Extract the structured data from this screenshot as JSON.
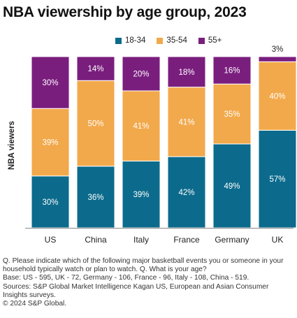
{
  "title": "NBA viewership by age group, 2023",
  "colors": {
    "18-34": "#0c6b8c",
    "35-54": "#f2a94b",
    "55+": "#7a1e7e"
  },
  "chart_data": {
    "type": "bar",
    "stacked": true,
    "categories": [
      "US",
      "China",
      "Italy",
      "France",
      "Germany",
      "UK"
    ],
    "series": [
      {
        "name": "18-34",
        "values": [
          30,
          36,
          39,
          42,
          49,
          57
        ]
      },
      {
        "name": "35-54",
        "values": [
          39,
          50,
          41,
          41,
          35,
          40
        ]
      },
      {
        "name": "55+",
        "values": [
          30,
          14,
          20,
          18,
          16,
          3
        ]
      }
    ],
    "labels": [
      [
        "30%",
        "36%",
        "39%",
        "42%",
        "49%",
        "57%"
      ],
      [
        "39%",
        "50%",
        "41%",
        "41%",
        "35%",
        "40%"
      ],
      [
        "30%",
        "14%",
        "20%",
        "18%",
        "16%",
        "3%"
      ]
    ],
    "ylabel": "NBA viewers",
    "ylim": [
      0,
      100
    ],
    "legend": "top",
    "grid": false
  },
  "footnote": {
    "line1": "Q. Please indicate which of the following major basketball events you or someone in your household typically watch or plan to watch. Q. What is your age?",
    "line2": "Base: US - 595, UK - 72, Germany - 106, France - 96, Italy - 108, China - 519.",
    "line3": "Sources: S&P Global Market Intelligence Kagan US, European and Asian Consumer Insights surveys.",
    "line4": "© 2024 S&P Global."
  }
}
